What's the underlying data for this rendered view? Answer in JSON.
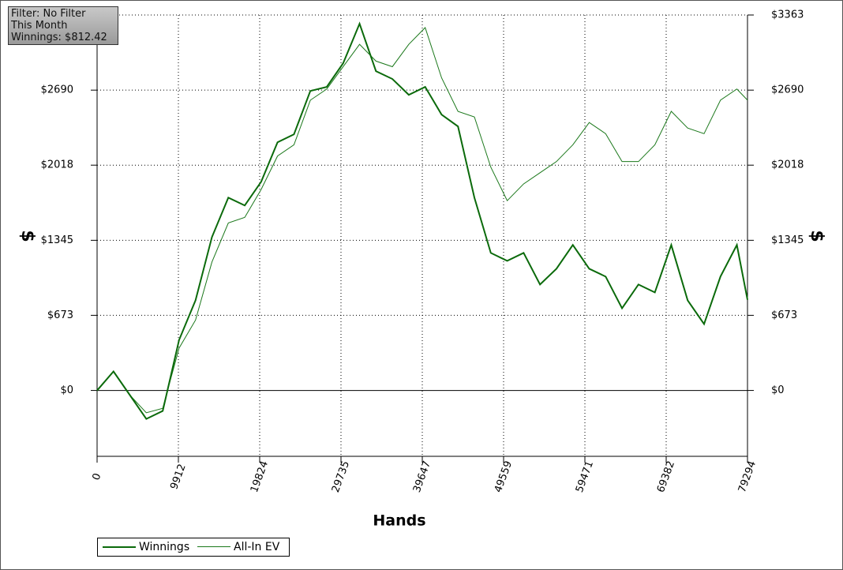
{
  "chart_data": {
    "type": "line",
    "x_label": "Hands",
    "y_label": "$",
    "y2_label": "$",
    "info": [
      "Filter: No Filter",
      "This Month",
      "Winnings: $812.42"
    ],
    "x": [
      0,
      2000,
      4000,
      6000,
      8000,
      10000,
      12000,
      14000,
      16000,
      18000,
      20000,
      22000,
      24000,
      26000,
      28000,
      30000,
      32000,
      34000,
      36000,
      38000,
      40000,
      42000,
      44000,
      46000,
      48000,
      50000,
      52000,
      54000,
      56000,
      58000,
      60000,
      62000,
      64000,
      66000,
      68000,
      70000,
      72000,
      74000,
      76000,
      78000,
      79294
    ],
    "series": [
      {
        "name": "Winnings",
        "color": "#0b6a0b",
        "width": 2,
        "values": [
          0,
          170,
          -42,
          -255,
          -184,
          453,
          807,
          1373,
          1727,
          1657,
          1869,
          2223,
          2294,
          2683,
          2719,
          2931,
          3285,
          2860,
          2790,
          2648,
          2719,
          2471,
          2365,
          1727,
          1232,
          1161,
          1232,
          949,
          1090,
          1303,
          1090,
          1020,
          736,
          949,
          878,
          1303,
          807,
          595,
          1020,
          1303,
          812
        ]
      },
      {
        "name": "All-In EV",
        "color": "#1b781b",
        "width": 1,
        "values": [
          0,
          170,
          -42,
          -200,
          -160,
          380,
          630,
          1150,
          1500,
          1550,
          1800,
          2100,
          2200,
          2600,
          2700,
          2900,
          3100,
          2950,
          2900,
          3100,
          3250,
          2800,
          2500,
          2450,
          2000,
          1700,
          1850,
          1950,
          2050,
          2200,
          2400,
          2300,
          2050,
          2050,
          2200,
          2500,
          2350,
          2300,
          2600,
          2700,
          2600
        ]
      }
    ],
    "xlim": [
      0,
      79294
    ],
    "xticks": [
      0,
      9912,
      19824,
      29735,
      39647,
      49559,
      59471,
      69382,
      79294
    ],
    "ylim": [
      -590,
      3363
    ],
    "yticks": [
      {
        "value": 0,
        "label": "$0"
      },
      {
        "value": 673,
        "label": "$673"
      },
      {
        "value": 1345,
        "label": "$1345"
      },
      {
        "value": 2018,
        "label": "$2018"
      },
      {
        "value": 2690,
        "label": "$2690"
      },
      {
        "value": 3363,
        "label": "$3363"
      }
    ],
    "grid": true
  }
}
